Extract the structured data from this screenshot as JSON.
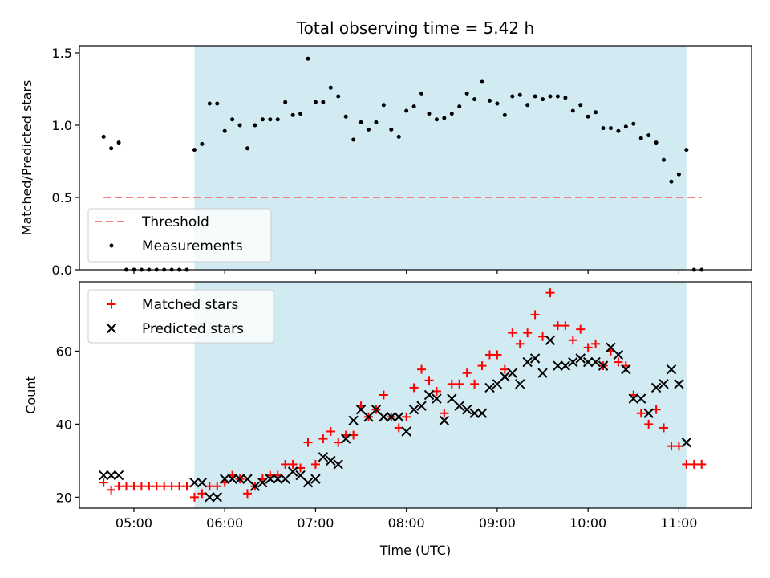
{
  "chart_data": [
    {
      "type": "scatter",
      "title": "Total observing time = 5.42 h",
      "xlabel": "",
      "ylabel": "Matched/Predicted stars",
      "xlim": [
        "04:24",
        "11:48"
      ],
      "ylim": [
        0,
        1.55
      ],
      "yticks": [
        "0.0",
        "0.5",
        "1.0",
        "1.5"
      ],
      "shaded_region": {
        "start": "05:40",
        "end": "11:05",
        "color": "#add8e6"
      },
      "threshold": {
        "name": "Threshold",
        "value": 0.5,
        "from": "04:40",
        "to": "11:15",
        "color": "#f08080"
      },
      "series": [
        {
          "name": "Measurements",
          "color": "#000000",
          "x": [
            "04:40",
            "04:45",
            "04:50",
            "04:55",
            "05:00",
            "05:05",
            "05:10",
            "05:15",
            "05:20",
            "05:25",
            "05:30",
            "05:35",
            "05:40",
            "05:45",
            "05:50",
            "05:55",
            "06:00",
            "06:05",
            "06:10",
            "06:15",
            "06:20",
            "06:25",
            "06:30",
            "06:35",
            "06:40",
            "06:45",
            "06:50",
            "06:55",
            "07:00",
            "07:05",
            "07:10",
            "07:15",
            "07:20",
            "07:25",
            "07:30",
            "07:35",
            "07:40",
            "07:45",
            "07:50",
            "07:55",
            "08:00",
            "08:05",
            "08:10",
            "08:15",
            "08:20",
            "08:25",
            "08:30",
            "08:35",
            "08:40",
            "08:45",
            "08:50",
            "08:55",
            "09:00",
            "09:05",
            "09:10",
            "09:15",
            "09:20",
            "09:25",
            "09:30",
            "09:35",
            "09:40",
            "09:45",
            "09:50",
            "09:55",
            "10:00",
            "10:05",
            "10:10",
            "10:15",
            "10:20",
            "10:25",
            "10:30",
            "10:35",
            "10:40",
            "10:45",
            "10:50",
            "10:55",
            "11:00",
            "11:05",
            "11:10",
            "11:15"
          ],
          "y": [
            0.92,
            0.84,
            0.88,
            0,
            0,
            0,
            0,
            0,
            0,
            0,
            0,
            0,
            0.83,
            0.87,
            1.15,
            1.15,
            0.96,
            1.04,
            1.0,
            0.84,
            1.0,
            1.04,
            1.04,
            1.04,
            1.16,
            1.07,
            1.08,
            1.46,
            1.16,
            1.16,
            1.26,
            1.2,
            1.06,
            0.9,
            1.02,
            0.97,
            1.02,
            1.14,
            0.97,
            0.92,
            1.1,
            1.13,
            1.22,
            1.08,
            1.04,
            1.05,
            1.08,
            1.13,
            1.22,
            1.18,
            1.3,
            1.17,
            1.15,
            1.07,
            1.2,
            1.21,
            1.14,
            1.2,
            1.18,
            1.2,
            1.2,
            1.19,
            1.1,
            1.14,
            1.06,
            1.09,
            0.98,
            0.98,
            0.96,
            0.99,
            1.01,
            0.91,
            0.93,
            0.88,
            0.76,
            0.61,
            0.66,
            0.83,
            0,
            0
          ]
        }
      ]
    },
    {
      "type": "scatter",
      "title": "",
      "xlabel": "Time (UTC)",
      "ylabel": "Count",
      "xlim": [
        "04:24",
        "11:48"
      ],
      "ylim": [
        17,
        79
      ],
      "yticks": [
        "20",
        "40",
        "60"
      ],
      "xticks": [
        "05:00",
        "06:00",
        "07:00",
        "08:00",
        "09:00",
        "10:00",
        "11:00"
      ],
      "shaded_region": {
        "start": "05:40",
        "end": "11:05",
        "color": "#add8e6"
      },
      "series": [
        {
          "name": "Matched stars",
          "marker": "plus",
          "color": "#ff0000",
          "x": [
            "04:40",
            "04:45",
            "04:50",
            "04:55",
            "05:00",
            "05:05",
            "05:10",
            "05:15",
            "05:20",
            "05:25",
            "05:30",
            "05:35",
            "05:40",
            "05:45",
            "05:50",
            "05:55",
            "06:00",
            "06:05",
            "06:10",
            "06:15",
            "06:20",
            "06:25",
            "06:30",
            "06:35",
            "06:40",
            "06:45",
            "06:50",
            "06:55",
            "07:00",
            "07:05",
            "07:10",
            "07:15",
            "07:20",
            "07:25",
            "07:30",
            "07:35",
            "07:40",
            "07:45",
            "07:50",
            "07:55",
            "08:00",
            "08:05",
            "08:10",
            "08:15",
            "08:20",
            "08:25",
            "08:30",
            "08:35",
            "08:40",
            "08:45",
            "08:50",
            "08:55",
            "09:00",
            "09:05",
            "09:10",
            "09:15",
            "09:20",
            "09:25",
            "09:30",
            "09:35",
            "09:40",
            "09:45",
            "09:50",
            "09:55",
            "10:00",
            "10:05",
            "10:10",
            "10:15",
            "10:20",
            "10:25",
            "10:30",
            "10:35",
            "10:40",
            "10:45",
            "10:50",
            "10:55",
            "11:00",
            "11:05",
            "11:10",
            "11:15"
          ],
          "y": [
            24,
            22,
            23,
            23,
            23,
            23,
            23,
            23,
            23,
            23,
            23,
            23,
            20,
            21,
            23,
            23,
            24,
            26,
            25,
            21,
            23,
            25,
            26,
            26,
            29,
            29,
            28,
            35,
            29,
            36,
            38,
            35,
            37,
            37,
            45,
            42,
            44,
            48,
            42,
            39,
            42,
            50,
            55,
            52,
            49,
            43,
            51,
            51,
            54,
            51,
            56,
            59,
            59,
            55,
            65,
            62,
            65,
            70,
            64,
            76,
            67,
            67,
            63,
            66,
            61,
            62,
            56,
            60,
            57,
            56,
            48,
            43,
            40,
            44,
            39,
            34,
            34,
            29,
            29,
            29
          ]
        },
        {
          "name": "Predicted stars",
          "marker": "cross",
          "color": "#000000",
          "x": [
            "04:40",
            "04:45",
            "04:50",
            "05:40",
            "05:45",
            "05:50",
            "05:55",
            "06:00",
            "06:05",
            "06:10",
            "06:15",
            "06:20",
            "06:25",
            "06:30",
            "06:35",
            "06:40",
            "06:45",
            "06:50",
            "06:55",
            "07:00",
            "07:05",
            "07:10",
            "07:15",
            "07:20",
            "07:25",
            "07:30",
            "07:35",
            "07:40",
            "07:45",
            "07:50",
            "07:55",
            "08:00",
            "08:05",
            "08:10",
            "08:15",
            "08:20",
            "08:25",
            "08:30",
            "08:35",
            "08:40",
            "08:45",
            "08:50",
            "08:55",
            "09:00",
            "09:05",
            "09:10",
            "09:15",
            "09:20",
            "09:25",
            "09:30",
            "09:35",
            "09:40",
            "09:45",
            "09:50",
            "09:55",
            "10:00",
            "10:05",
            "10:10",
            "10:15",
            "10:20",
            "10:25",
            "10:30",
            "10:35",
            "10:40",
            "10:45",
            "10:50",
            "10:55",
            "11:00",
            "11:05"
          ],
          "y": [
            26,
            26,
            26,
            24,
            24,
            20,
            20,
            25,
            25,
            25,
            25,
            23,
            24,
            25,
            25,
            25,
            27,
            26,
            24,
            25,
            31,
            30,
            29,
            36,
            41,
            44,
            42,
            44,
            42,
            42,
            42,
            38,
            44,
            45,
            48,
            47,
            41,
            47,
            45,
            44,
            43,
            43,
            50,
            51,
            53,
            54,
            51,
            57,
            58,
            54,
            63,
            56,
            56,
            57,
            58,
            57,
            57,
            56,
            61,
            59,
            55,
            47,
            47,
            43,
            50,
            51,
            55,
            51,
            35
          ]
        }
      ]
    }
  ]
}
